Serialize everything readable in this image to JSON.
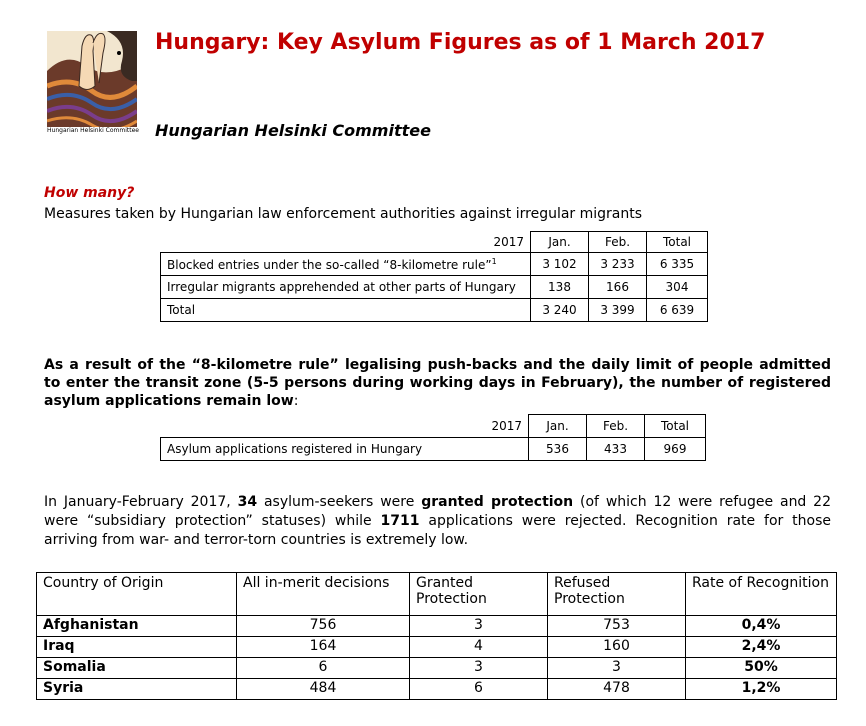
{
  "header": {
    "title": "Hungary: Key Asylum Figures as of 1 March 2017",
    "organization": "Hungarian Helsinki Committee",
    "logo_caption": "Hungarian Helsinki Committee"
  },
  "section1": {
    "heading": "How many?",
    "subheading": "Measures taken by Hungarian law enforcement authorities against irregular migrants"
  },
  "table1": {
    "year_label": "2017",
    "columns": [
      "Jan.",
      "Feb.",
      "Total"
    ],
    "rows": [
      {
        "label": "Blocked entries under the so-called “8-kilometre rule”",
        "footnote": "1",
        "values": [
          "3 102",
          "3 233",
          "6 335"
        ]
      },
      {
        "label": "Irregular migrants apprehended at other parts of Hungary",
        "values": [
          "138",
          "166",
          "304"
        ]
      },
      {
        "label": "Total",
        "values": [
          "3 240",
          "3 399",
          "6 639"
        ]
      }
    ]
  },
  "paragraph_bold": {
    "text": "As a result of the “8-kilometre rule” legalising push-backs and the daily limit of people admitted to enter the transit zone (5-5 persons during working days in February), the number of registered asylum applications remain low",
    "tail": ":"
  },
  "table2": {
    "year_label": "2017",
    "columns": [
      "Jan.",
      "Feb.",
      "Total"
    ],
    "rows": [
      {
        "label": "Asylum applications registered in Hungary",
        "values": [
          "536",
          "433",
          "969"
        ]
      }
    ]
  },
  "paragraph": {
    "p1": "In January-February 2017, ",
    "b1": "34",
    "p2": " asylum-seekers were ",
    "b2": "granted protection",
    "p3": " (of which 12 were refugee and 22 were “subsidiary protection” statuses) while ",
    "b3": "1711",
    "p4": " applications were rejected. Recognition rate for those arriving from war- and terror-torn countries is extremely low."
  },
  "table3": {
    "headers": [
      "Country of Origin",
      "All in-merit decisions",
      "Granted Protection",
      "Refused Protection",
      "Rate of Recognition"
    ],
    "rows": [
      {
        "country": "Afghanistan",
        "decisions": "756",
        "granted": "3",
        "refused": "753",
        "rate": "0,4%"
      },
      {
        "country": "Iraq",
        "decisions": "164",
        "granted": "4",
        "refused": "160",
        "rate": "2,4%"
      },
      {
        "country": "Somalia",
        "decisions": "6",
        "granted": "3",
        "refused": "3",
        "rate": "50%"
      },
      {
        "country": "Syria",
        "decisions": "484",
        "granted": "6",
        "refused": "478",
        "rate": "1,2%"
      }
    ]
  },
  "colors": {
    "title": "#c00000",
    "text": "#000000",
    "logo_bg": "#f2e6cf",
    "logo_brown": "#6b3a2a",
    "logo_orange": "#e08a3a",
    "logo_blue": "#3a5fa8",
    "logo_purple": "#7a3d8c"
  }
}
